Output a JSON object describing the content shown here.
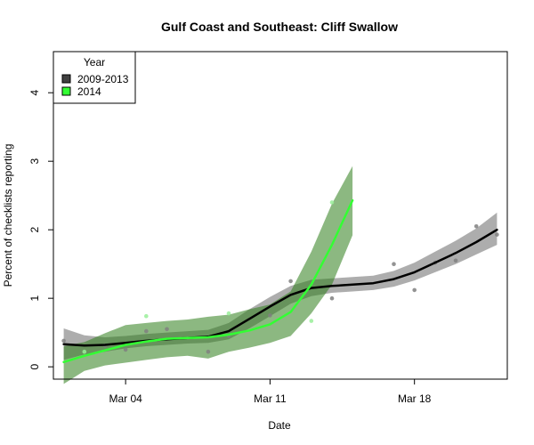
{
  "chart_data": {
    "type": "line",
    "title": "Gulf Coast and Southeast: Cliff Swallow",
    "xlabel": "Date",
    "ylabel": "Percent of checklists reporting",
    "x_unit": "day of March",
    "xlim": [
      0.5,
      22.5
    ],
    "ylim": [
      -0.18,
      4.6
    ],
    "x_ticks": [
      {
        "value": 4,
        "label": "Mar 04"
      },
      {
        "value": 11,
        "label": "Mar 11"
      },
      {
        "value": 18,
        "label": "Mar 18"
      }
    ],
    "y_ticks": [
      0,
      1,
      2,
      3,
      4
    ],
    "legend": {
      "title": "Year",
      "position": "top-left",
      "entries": [
        {
          "label": "2009-2013",
          "color": "#404040"
        },
        {
          "label": "2014",
          "color": "#33ff33"
        }
      ]
    },
    "series": [
      {
        "name": "2009-2013",
        "line_color": "#000000",
        "band_color": "#000000",
        "point_color": "#808080",
        "fit_x": [
          1,
          2,
          3,
          4,
          5,
          6,
          7,
          8,
          9,
          10,
          11,
          12,
          13,
          14,
          15,
          16,
          17,
          18,
          19,
          20,
          21,
          22
        ],
        "fit_y": [
          0.33,
          0.31,
          0.32,
          0.35,
          0.38,
          0.4,
          0.42,
          0.44,
          0.52,
          0.7,
          0.88,
          1.05,
          1.15,
          1.18,
          1.2,
          1.22,
          1.28,
          1.38,
          1.52,
          1.66,
          1.82,
          2.0
        ],
        "ci_lower": [
          0.1,
          0.18,
          0.22,
          0.27,
          0.3,
          0.32,
          0.34,
          0.35,
          0.4,
          0.56,
          0.74,
          0.92,
          1.03,
          1.08,
          1.1,
          1.12,
          1.17,
          1.26,
          1.38,
          1.5,
          1.64,
          1.78
        ],
        "ci_upper": [
          0.56,
          0.46,
          0.43,
          0.45,
          0.48,
          0.5,
          0.52,
          0.54,
          0.64,
          0.84,
          1.02,
          1.18,
          1.27,
          1.29,
          1.31,
          1.33,
          1.4,
          1.52,
          1.68,
          1.84,
          2.02,
          2.25
        ],
        "points": [
          {
            "x": 1,
            "y": 0.38
          },
          {
            "x": 3,
            "y": 0.31
          },
          {
            "x": 4,
            "y": 0.25
          },
          {
            "x": 5,
            "y": 0.52
          },
          {
            "x": 6,
            "y": 0.55
          },
          {
            "x": 8,
            "y": 0.22
          },
          {
            "x": 9,
            "y": 0.45
          },
          {
            "x": 11,
            "y": 0.75
          },
          {
            "x": 12,
            "y": 1.25
          },
          {
            "x": 14,
            "y": 1.0
          },
          {
            "x": 17,
            "y": 1.5
          },
          {
            "x": 18,
            "y": 1.12
          },
          {
            "x": 19,
            "y": 1.52
          },
          {
            "x": 20,
            "y": 1.55
          },
          {
            "x": 21,
            "y": 2.05
          },
          {
            "x": 22,
            "y": 1.93
          }
        ]
      },
      {
        "name": "2014",
        "line_color": "#33ff33",
        "band_color": "#2e7d1a",
        "point_color": "#99ee99",
        "fit_x": [
          1,
          2,
          3,
          4,
          5,
          6,
          7,
          8,
          9,
          10,
          11,
          12,
          13,
          14,
          15
        ],
        "fit_y": [
          0.07,
          0.16,
          0.24,
          0.32,
          0.37,
          0.41,
          0.42,
          0.43,
          0.47,
          0.53,
          0.62,
          0.8,
          1.2,
          1.78,
          2.43
        ],
        "ci_lower": [
          -0.25,
          -0.06,
          0.02,
          0.06,
          0.1,
          0.14,
          0.16,
          0.12,
          0.22,
          0.28,
          0.35,
          0.45,
          0.78,
          1.2,
          1.92
        ],
        "ci_upper": [
          0.3,
          0.36,
          0.49,
          0.61,
          0.64,
          0.67,
          0.69,
          0.73,
          0.76,
          0.84,
          0.91,
          1.1,
          1.68,
          2.38,
          2.93
        ],
        "points": [
          {
            "x": 2,
            "y": 0.22
          },
          {
            "x": 5,
            "y": 0.74
          },
          {
            "x": 9,
            "y": 0.78
          },
          {
            "x": 13,
            "y": 0.67
          },
          {
            "x": 14,
            "y": 2.4
          }
        ]
      }
    ]
  }
}
